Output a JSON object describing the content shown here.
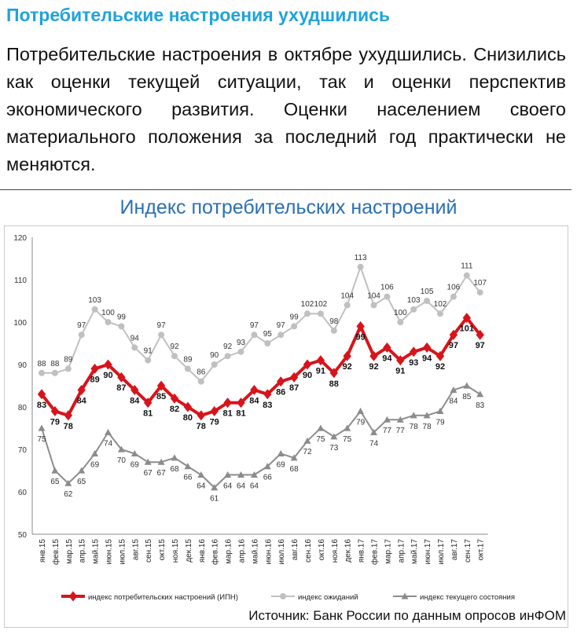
{
  "header": {
    "title": "Потребительские настроения ухудшились",
    "paragraph": "Потребительские настроения в октябре ухудшились. Снизились как оценки текущей ситуации, так и оценки перспектив экономического развития. Оценки населением своего материального положения за последний год практически не меняются."
  },
  "colors": {
    "title": "#1fa3dc",
    "chart_title": "#2a6fb5",
    "ipn": "#d7141b",
    "expectations": "#c0c0c0",
    "current": "#8c8c8c"
  },
  "chart_data": {
    "type": "line",
    "title": "Индекс потребительских настроений",
    "ylim": [
      50,
      120
    ],
    "yticks": [
      50,
      60,
      70,
      80,
      90,
      100,
      110,
      120
    ],
    "grid": false,
    "legend_position": "bottom",
    "categories": [
      "янв.15",
      "фев.15",
      "мар.15",
      "апр.15",
      "май.15",
      "июн.15",
      "июл.15",
      "авг.15",
      "сен.15",
      "окт.15",
      "ноя.15",
      "дек.15",
      "янв.16",
      "фев.16",
      "мар.16",
      "апр.16",
      "май.16",
      "июн.16",
      "июл.16",
      "авг.16",
      "сен.16",
      "окт.16",
      "ноя.16",
      "дек.16",
      "янв.17",
      "фев.17",
      "мар.17",
      "апр.17",
      "май.17",
      "июн.17",
      "июл.17",
      "авг.17",
      "сен.17",
      "окт.17"
    ],
    "series": [
      {
        "name": "индекс потребительских настроений (ИПН)",
        "values": [
          83,
          79,
          78,
          84,
          89,
          90,
          87,
          84,
          81,
          85,
          82,
          80,
          78,
          79,
          81,
          81,
          84,
          83,
          86,
          87,
          90,
          91,
          88,
          92,
          99,
          92,
          94,
          91,
          93,
          94,
          92,
          97,
          101,
          97
        ],
        "labels": [
          "83",
          "79",
          "78",
          "84",
          "89",
          "90",
          "87",
          "84",
          "81",
          "85",
          "82",
          "80",
          "78",
          "79",
          "81",
          "81",
          "84",
          "83",
          "86",
          "87",
          "90",
          "91",
          "88",
          "92",
          "99",
          "92",
          "94",
          "91",
          "93",
          "94",
          "92",
          "97",
          "101",
          "97"
        ]
      },
      {
        "name": "индекс ожиданий",
        "values": [
          88,
          88,
          89,
          97,
          103,
          100,
          99,
          94,
          91,
          97,
          92,
          89,
          86,
          90,
          92,
          93,
          97,
          95,
          97,
          99,
          102,
          102,
          98,
          104,
          113,
          104,
          106,
          100,
          103,
          105,
          102,
          106,
          111,
          107
        ],
        "labels": [
          "88",
          "88",
          "89",
          "97",
          "103",
          "100",
          "99",
          "94",
          "91",
          "97",
          "92",
          "89",
          "86",
          "90",
          "92",
          "93",
          "97",
          "95",
          "97",
          "99",
          "102",
          "102",
          "98",
          "104",
          "113",
          "104",
          "106",
          "100",
          "103",
          "105",
          "102",
          "106",
          "111",
          "107"
        ]
      },
      {
        "name": "индекс текущего состояния",
        "values": [
          75,
          65,
          62,
          65,
          69,
          74,
          70,
          69,
          67,
          67,
          68,
          66,
          64,
          61,
          64,
          64,
          64,
          66,
          69,
          68,
          72,
          75,
          73,
          75,
          79,
          74,
          77,
          77,
          78,
          78,
          79,
          84,
          85,
          83
        ],
        "labels": [
          "75",
          "65",
          "62",
          "65",
          "69",
          "74",
          "70",
          "69",
          "67",
          "67",
          "68",
          "66",
          "64",
          "61",
          "64",
          "64",
          "64",
          "66",
          "69",
          "68",
          "72",
          "75",
          "73",
          "75",
          "79",
          "74",
          "77",
          "77",
          "78",
          "78",
          "79",
          "84",
          "85",
          "83"
        ]
      }
    ]
  },
  "footer": {
    "source": "Источник: Банк России по данным опросов инФОМ"
  }
}
